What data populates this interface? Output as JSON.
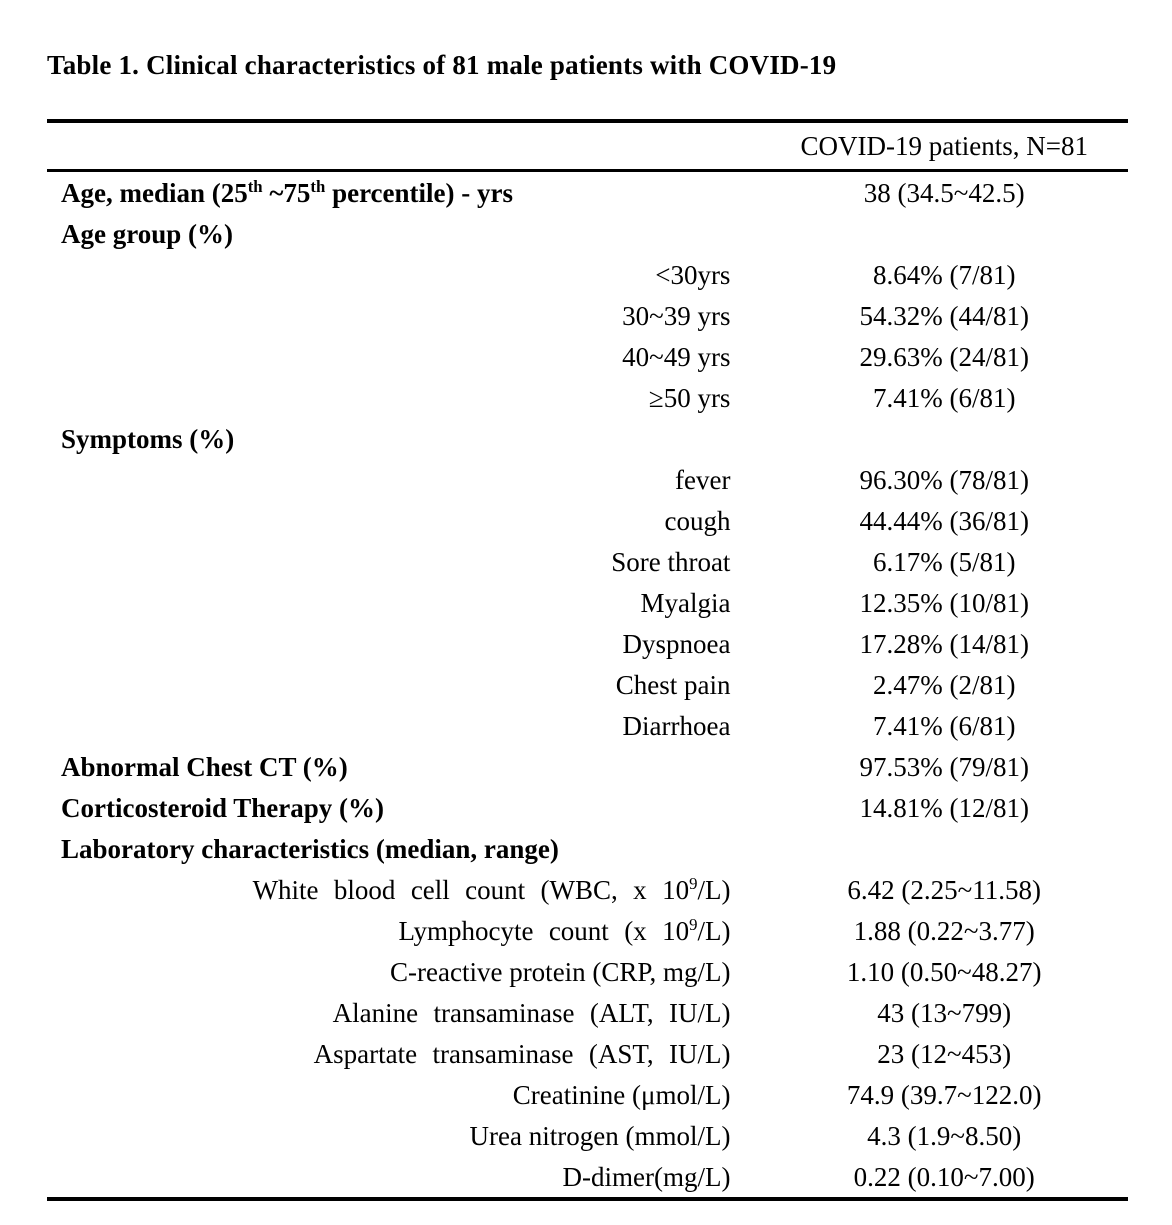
{
  "title": "Table 1. Clinical characteristics of 81 male patients with COVID-19",
  "table": {
    "header": {
      "label": "",
      "value": "COVID-19 patients, N=81"
    },
    "rows": [
      {
        "type": "section",
        "label": "Age, median (25^{th} ~75^{th} percentile) - yrs",
        "value": "38 (34.5~42.5)"
      },
      {
        "type": "section",
        "label": "Age group (%)",
        "value": ""
      },
      {
        "type": "item",
        "label": "<30yrs",
        "value": "8.64% (7/81)"
      },
      {
        "type": "item",
        "label": "30~39 yrs",
        "value": "54.32% (44/81)"
      },
      {
        "type": "item",
        "label": "40~49 yrs",
        "value": "29.63% (24/81)"
      },
      {
        "type": "item",
        "label": "≥50 yrs",
        "value": "7.41% (6/81)"
      },
      {
        "type": "section",
        "label": "Symptoms (%)",
        "value": ""
      },
      {
        "type": "item",
        "label": "fever",
        "value": "96.30% (78/81)"
      },
      {
        "type": "item",
        "label": "cough",
        "value": "44.44% (36/81)"
      },
      {
        "type": "item",
        "label": "Sore throat",
        "value": "6.17% (5/81)"
      },
      {
        "type": "item",
        "label": "Myalgia",
        "value": "12.35% (10/81)"
      },
      {
        "type": "item",
        "label": "Dyspnoea",
        "value": "17.28% (14/81)"
      },
      {
        "type": "item",
        "label": "Chest pain",
        "value": "2.47% (2/81)"
      },
      {
        "type": "item",
        "label": "Diarrhoea",
        "value": "7.41% (6/81)"
      },
      {
        "type": "section",
        "label": "Abnormal Chest CT (%)",
        "value": "97.53% (79/81)"
      },
      {
        "type": "section",
        "label": "Corticosteroid Therapy (%)",
        "value": "14.81% (12/81)"
      },
      {
        "type": "section",
        "label": "Laboratory characteristics (median, range)",
        "value": ""
      },
      {
        "type": "item-wide",
        "label": "White blood cell count (WBC, x 10^{9}/L)",
        "value": "6.42 (2.25~11.58)"
      },
      {
        "type": "item-wide",
        "label": "Lymphocyte count (x 10^{9}/L)",
        "value": "1.88 (0.22~3.77)"
      },
      {
        "type": "item",
        "label": "C-reactive protein (CRP, mg/L)",
        "value": "1.10 (0.50~48.27)"
      },
      {
        "type": "item-wide",
        "label": "Alanine transaminase (ALT, IU/L)",
        "value": "43 (13~799)"
      },
      {
        "type": "item-wide",
        "label": "Aspartate transaminase (AST, IU/L)",
        "value": "23 (12~453)"
      },
      {
        "type": "item",
        "label": "Creatinine  (μmol/L)",
        "value": "74.9 (39.7~122.0)"
      },
      {
        "type": "item",
        "label": "Urea nitrogen (mmol/L)",
        "value": "4.3 (1.9~8.50)"
      },
      {
        "type": "item",
        "label": "D-dimer(mg/L)",
        "value": "0.22 (0.10~7.00)"
      }
    ]
  }
}
